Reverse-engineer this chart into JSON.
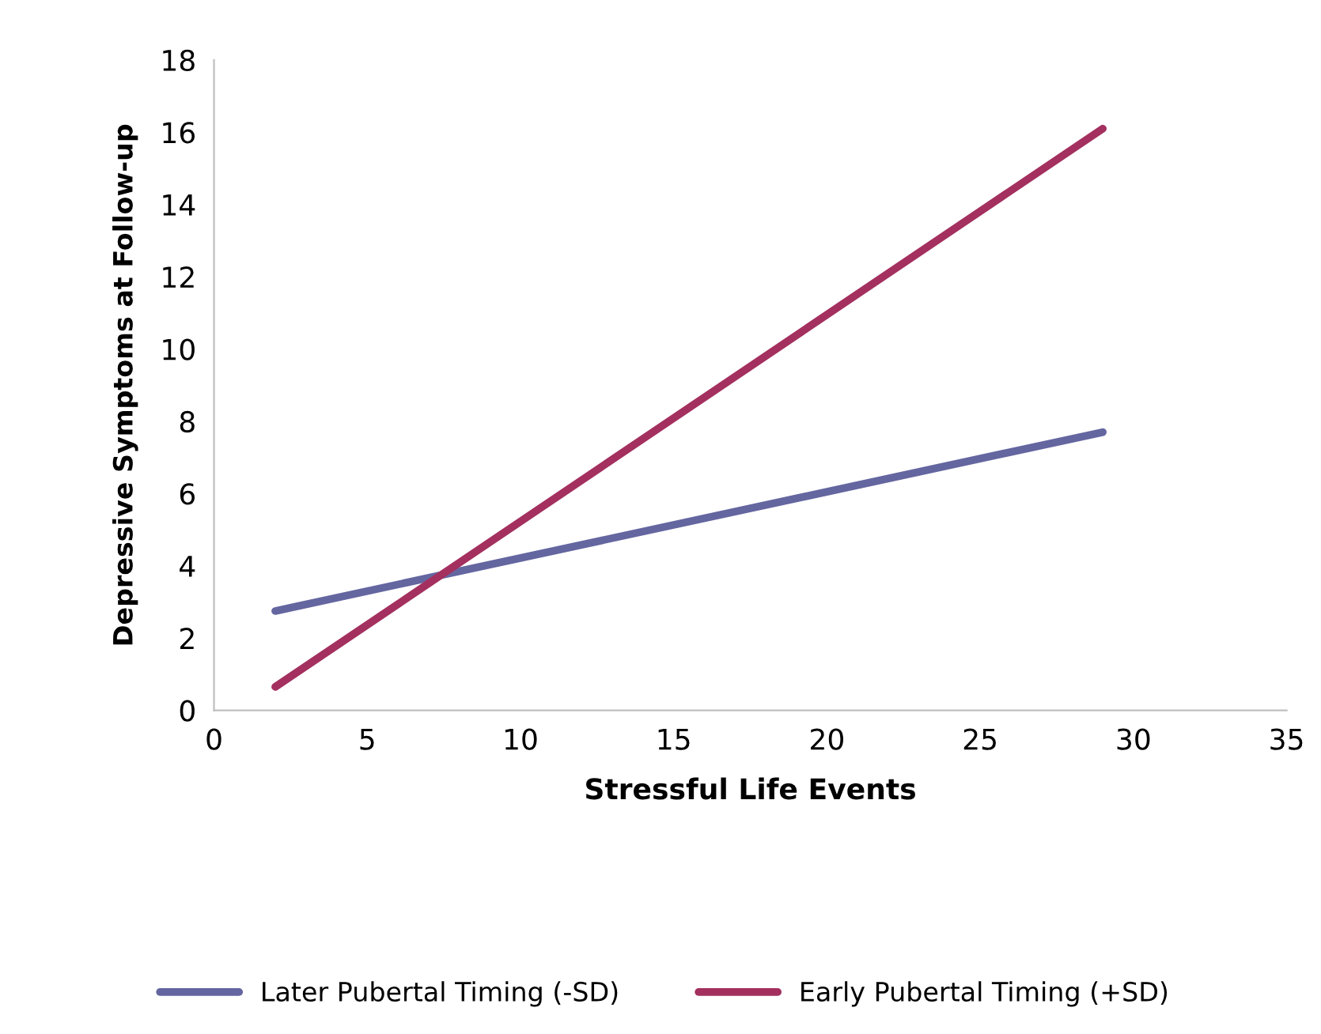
{
  "chart_data": {
    "type": "line",
    "xlabel": "Stressful Life Events",
    "ylabel": "Depressive Symptoms at Follow-up",
    "series": [
      {
        "name": "Later Pubertal Timing (-SD)",
        "color": "#6466a0",
        "values": [
          2.75,
          7.7
        ]
      },
      {
        "name": "Early Pubertal Timing (+SD)",
        "color": "#a3305f",
        "values": [
          0.65,
          16.1
        ]
      }
    ],
    "x": [
      2,
      29
    ],
    "xlim": [
      0,
      35
    ],
    "xticks": [
      0,
      5,
      10,
      15,
      20,
      25,
      30,
      35
    ],
    "ylim": [
      0,
      18
    ],
    "yticks": [
      0,
      2,
      4,
      6,
      8,
      10,
      12,
      14,
      16,
      18
    ],
    "grid": false,
    "legend": "bottom",
    "marker": "none",
    "line_style": "solid"
  }
}
